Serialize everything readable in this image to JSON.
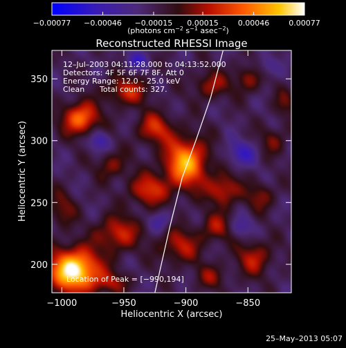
{
  "chart_data": {
    "type": "heatmap",
    "title": "Reconstructed RHESSI Image",
    "xlabel": "Heliocentric X (arcsec)",
    "ylabel": "Heliocentric Y (arcsec)",
    "xlim": [
      -1008,
      -815
    ],
    "ylim": [
      177,
      373
    ],
    "x_ticks": [
      -1000,
      -950,
      -900,
      -850
    ],
    "x_tick_labels": [
      "−1000",
      "−950",
      "−900",
      "−850"
    ],
    "y_ticks": [
      200,
      250,
      300,
      350
    ],
    "y_tick_labels": [
      "200",
      "250",
      "300",
      "350"
    ],
    "colorbar": {
      "range": [
        -0.00077,
        0.00077
      ],
      "tick_values": [
        -0.00077,
        -0.00046,
        -0.00015,
        0.00015,
        0.00046,
        0.00077
      ],
      "tick_labels": [
        "−0.00077",
        "−0.00046",
        "−0.00015",
        "0.00015",
        "0.00046",
        "0.00077"
      ],
      "unit_main": "(photons cm",
      "unit_exp1": "−2",
      "unit_mid": " s",
      "unit_exp2": "−1",
      "unit_after": " asec",
      "unit_exp3": "−2",
      "unit_close": ")"
    },
    "annotations": {
      "time_range": "12–Jul–2003 04:11:28.000 to 04:13:52.000",
      "detectors": "Detectors: 4F 5F 6F 7F 8F, Att 0",
      "energy": "Energy Range: 12.0 – 25.0 keV",
      "clean_label": "Clean",
      "counts": "Total counts: 327.",
      "peak": "Location of Peak = [−990,194]"
    },
    "peak": {
      "x": -990,
      "y": 194
    },
    "limb_curve": [
      [
        -925,
        177
      ],
      [
        -913,
        230
      ],
      [
        -903,
        270
      ],
      [
        -892,
        300
      ],
      [
        -880,
        335
      ],
      [
        -870,
        373
      ]
    ],
    "blobs": [
      {
        "x": -990,
        "y": 195,
        "sx": 14,
        "sy": 12,
        "v": 0.00095
      },
      {
        "x": -985,
        "y": 318,
        "sx": 10,
        "sy": 9,
        "v": 0.0006
      },
      {
        "x": -900,
        "y": 282,
        "sx": 12,
        "sy": 14,
        "v": 0.00072
      },
      {
        "x": -925,
        "y": 310,
        "sx": 10,
        "sy": 9,
        "v": 0.0004
      },
      {
        "x": -930,
        "y": 260,
        "sx": 11,
        "sy": 9,
        "v": 0.00042
      },
      {
        "x": -948,
        "y": 340,
        "sx": 12,
        "sy": 8,
        "v": 0.00038
      },
      {
        "x": -880,
        "y": 345,
        "sx": 10,
        "sy": 8,
        "v": 0.0003
      },
      {
        "x": -850,
        "y": 350,
        "sx": 8,
        "sy": 8,
        "v": 0.00028
      },
      {
        "x": -955,
        "y": 225,
        "sx": 12,
        "sy": 10,
        "v": 0.0004
      },
      {
        "x": -905,
        "y": 215,
        "sx": 12,
        "sy": 10,
        "v": 0.00034
      },
      {
        "x": -870,
        "y": 260,
        "sx": 9,
        "sy": 9,
        "v": 0.0004
      },
      {
        "x": -875,
        "y": 230,
        "sx": 9,
        "sy": 8,
        "v": 0.0003
      },
      {
        "x": -845,
        "y": 205,
        "sx": 10,
        "sy": 10,
        "v": 0.00034
      },
      {
        "x": -840,
        "y": 255,
        "sx": 8,
        "sy": 8,
        "v": 0.00026
      },
      {
        "x": -1000,
        "y": 245,
        "sx": 8,
        "sy": 10,
        "v": 0.00024
      },
      {
        "x": -960,
        "y": 280,
        "sx": 9,
        "sy": 8,
        "v": 0.00026
      },
      {
        "x": -830,
        "y": 300,
        "sx": 8,
        "sy": 8,
        "v": 0.00022
      },
      {
        "x": -960,
        "y": 185,
        "sx": 10,
        "sy": 6,
        "v": 0.00026
      },
      {
        "x": -880,
        "y": 190,
        "sx": 9,
        "sy": 7,
        "v": 0.00024
      },
      {
        "x": -820,
        "y": 330,
        "sx": 6,
        "sy": 8,
        "v": 0.0002
      },
      {
        "x": -970,
        "y": 300,
        "sx": 6,
        "sy": 6,
        "v": -0.00028
      },
      {
        "x": -855,
        "y": 290,
        "sx": 9,
        "sy": 7,
        "v": -0.0003
      },
      {
        "x": -920,
        "y": 235,
        "sx": 6,
        "sy": 6,
        "v": -0.00022
      },
      {
        "x": -940,
        "y": 365,
        "sx": 6,
        "sy": 5,
        "v": -0.0003
      },
      {
        "x": -855,
        "y": 230,
        "sx": 7,
        "sy": 6,
        "v": -0.00022
      },
      {
        "x": -835,
        "y": 360,
        "sx": 6,
        "sy": 6,
        "v": -0.0002
      }
    ]
  },
  "footer": {
    "date": "25–May–2013 05:07"
  }
}
